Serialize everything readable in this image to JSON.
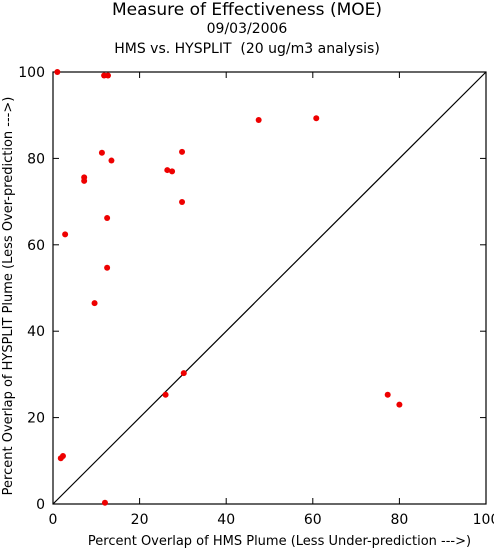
{
  "header": {
    "title": "Measure of Effectiveness (MOE)",
    "date": "09/03/2006",
    "subtitle": "HMS vs. HYSPLIT  (20 ug/m3 analysis)"
  },
  "chart_data": {
    "type": "scatter",
    "title": "Measure of Effectiveness (MOE)",
    "subtitle": "09/03/2006 HMS vs. HYSPLIT  (20 ug/m3 analysis)",
    "xlabel": "Percent Overlap of HMS Plume (Less Under-prediction --->)",
    "ylabel": "Percent Overlap of HYSPLIT Plume (Less Over-prediction --->)",
    "xlim": [
      0,
      100
    ],
    "ylim": [
      0,
      100
    ],
    "xticks": [
      0,
      20,
      40,
      60,
      80,
      100
    ],
    "yticks": [
      0,
      20,
      40,
      60,
      80,
      100
    ],
    "grid": false,
    "reference_line": "y = x",
    "marker_color": "#ee0000",
    "points": [
      {
        "x": 1.0,
        "y": 100.0
      },
      {
        "x": 11.8,
        "y": 99.2
      },
      {
        "x": 12.7,
        "y": 99.2
      },
      {
        "x": 47.5,
        "y": 88.9
      },
      {
        "x": 60.8,
        "y": 89.3
      },
      {
        "x": 11.3,
        "y": 81.3
      },
      {
        "x": 29.8,
        "y": 81.5
      },
      {
        "x": 13.5,
        "y": 79.5
      },
      {
        "x": 26.4,
        "y": 77.3
      },
      {
        "x": 27.5,
        "y": 77.0
      },
      {
        "x": 7.2,
        "y": 75.6
      },
      {
        "x": 7.2,
        "y": 74.8
      },
      {
        "x": 29.8,
        "y": 69.9
      },
      {
        "x": 12.5,
        "y": 66.2
      },
      {
        "x": 2.8,
        "y": 62.4
      },
      {
        "x": 12.5,
        "y": 54.7
      },
      {
        "x": 9.6,
        "y": 46.5
      },
      {
        "x": 30.2,
        "y": 30.3
      },
      {
        "x": 26.0,
        "y": 25.3
      },
      {
        "x": 77.3,
        "y": 25.3
      },
      {
        "x": 80.0,
        "y": 23.0
      },
      {
        "x": 2.3,
        "y": 11.1
      },
      {
        "x": 1.8,
        "y": 10.6
      },
      {
        "x": 12.0,
        "y": 0.3
      }
    ]
  }
}
